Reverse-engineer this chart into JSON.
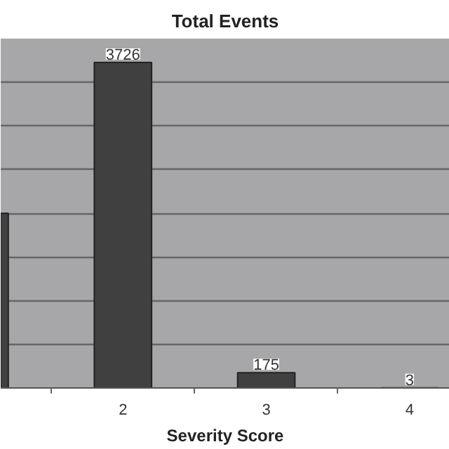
{
  "chart_data": {
    "type": "bar",
    "title": "Total Events",
    "xlabel": "Severity Score",
    "categories": [
      null,
      "2",
      "3",
      "4"
    ],
    "values": [
      2000,
      3726,
      175,
      3
    ],
    "value_labels": [
      null,
      "3726",
      "175",
      "3"
    ],
    "color": "#404040",
    "ylim": [
      0,
      4000
    ],
    "yticks": [
      {
        "value": 0,
        "label": null
      },
      {
        "value": 500,
        "label": null
      },
      {
        "value": 1000,
        "label": null
      },
      {
        "value": 1500,
        "label": null
      },
      {
        "value": 2000,
        "label": null
      },
      {
        "value": 2500,
        "label": null
      },
      {
        "value": 3000,
        "label": null
      },
      {
        "value": 3500,
        "label": null
      },
      {
        "value": 4000,
        "label": null
      }
    ],
    "grid": "y",
    "tick_labels": "x"
  }
}
